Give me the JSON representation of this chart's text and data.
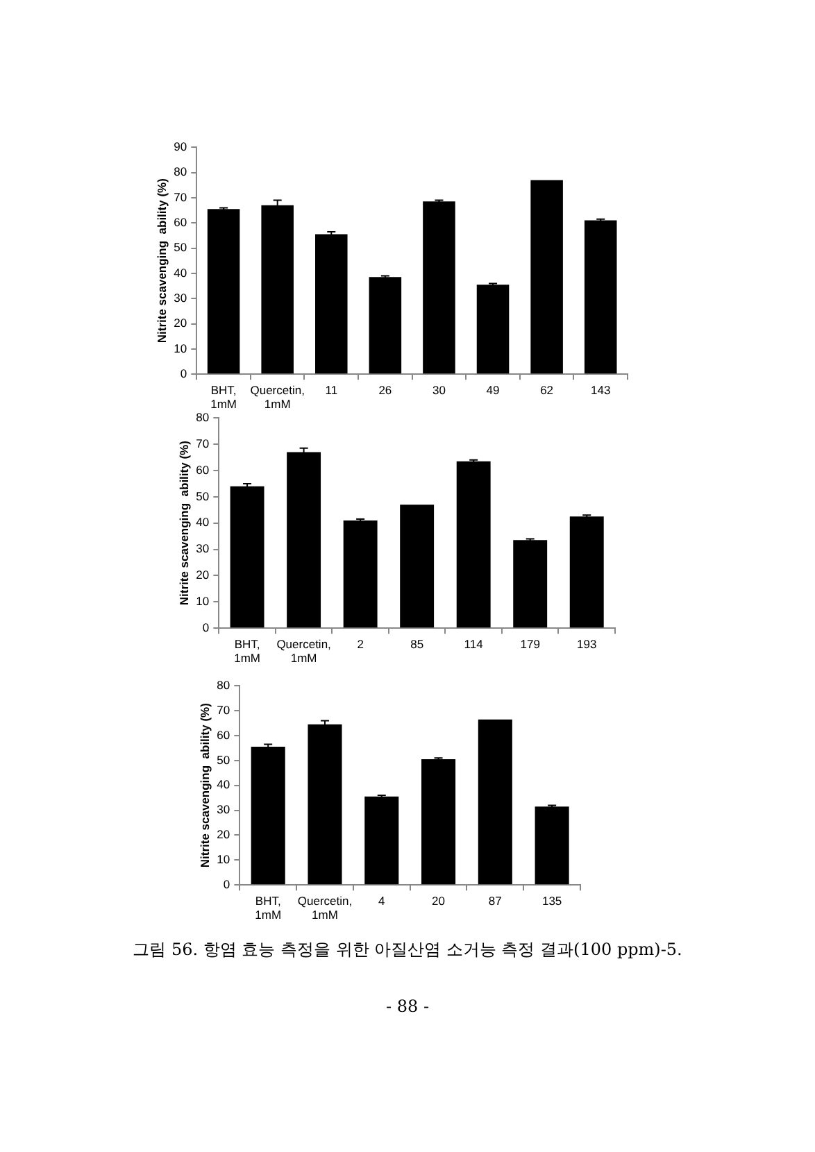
{
  "chart_data": [
    {
      "type": "bar",
      "ylabel": "Nitrite scavenging  ability (%)",
      "categories": [
        "BHT, 1mM",
        "Quercetin, 1mM",
        "11",
        "26",
        "30",
        "49",
        "62",
        "143"
      ],
      "values": [
        65.5,
        67,
        55.5,
        38.5,
        68.5,
        35.5,
        77,
        61
      ],
      "errors": [
        0.5,
        2,
        1,
        0.5,
        0.5,
        0.5,
        null,
        0.5
      ],
      "color": "#000000",
      "ylim": [
        0,
        90
      ],
      "yticks": [
        0,
        10,
        20,
        30,
        40,
        50,
        60,
        70,
        80,
        90
      ]
    },
    {
      "type": "bar",
      "ylabel": "Nitrite scavenging  ability (%)",
      "categories": [
        "BHT, 1mM",
        "Quercetin, 1mM",
        "2",
        "85",
        "114",
        "179",
        "193"
      ],
      "values": [
        54,
        67,
        41,
        47,
        63.5,
        33.5,
        42.5
      ],
      "errors": [
        1,
        1.5,
        0.5,
        null,
        0.5,
        0.5,
        0.5
      ],
      "color": "#000000",
      "ylim": [
        0,
        80
      ],
      "yticks": [
        0,
        10,
        20,
        30,
        40,
        50,
        60,
        70,
        80
      ]
    },
    {
      "type": "bar",
      "ylabel": "Nitrite scavenging  ability (%)",
      "categories": [
        "BHT, 1mM",
        "Quercetin, 1mM",
        "4",
        "20",
        "87",
        "135"
      ],
      "values": [
        55.5,
        64.5,
        35.5,
        50.5,
        66.5,
        31.5
      ],
      "errors": [
        1,
        1.5,
        0.5,
        0.5,
        null,
        0.5
      ],
      "color": "#000000",
      "ylim": [
        0,
        80
      ],
      "yticks": [
        0,
        10,
        20,
        30,
        40,
        50,
        60,
        70,
        80
      ],
      "annotations": [
        "그림 56. 항염 효능 측정을 위한 아질산염 소거능 측정 결과(100 ppm)-5.",
        "- 88 -"
      ]
    }
  ]
}
